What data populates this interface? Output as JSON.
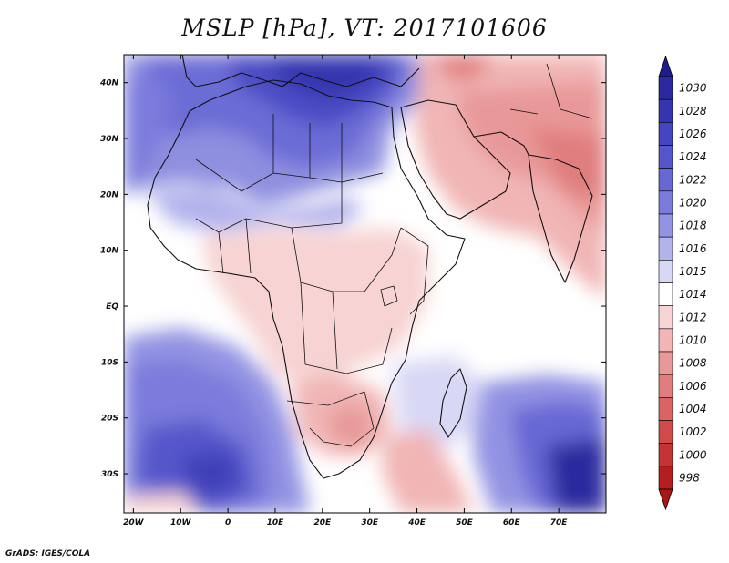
{
  "title": "MSLP [hPa], VT: 2017101606",
  "credit": "GrADS: IGES/COLA",
  "map": {
    "lat_labels": [
      "40N",
      "30N",
      "20N",
      "10N",
      "EQ",
      "10S",
      "20S",
      "30S"
    ],
    "lat_values": [
      40,
      30,
      20,
      10,
      0,
      -10,
      -20,
      -30
    ],
    "lon_labels": [
      "20W",
      "10W",
      "0",
      "10E",
      "20E",
      "30E",
      "40E",
      "50E",
      "60E",
      "70E"
    ],
    "lon_values": [
      -20,
      -10,
      0,
      10,
      20,
      30,
      40,
      50,
      60,
      70
    ],
    "lon_range": [
      -22,
      80
    ],
    "lat_range": [
      -37,
      45
    ]
  },
  "colorbar": {
    "labels": [
      "1030",
      "1028",
      "1026",
      "1024",
      "1022",
      "1020",
      "1018",
      "1016",
      "1015",
      "1014",
      "1012",
      "1010",
      "1008",
      "1006",
      "1004",
      "1002",
      "1000",
      "998"
    ],
    "colors": [
      "#2a2a9e",
      "#3535b0",
      "#4545bf",
      "#5656cb",
      "#6868d4",
      "#7b7bdc",
      "#9393e3",
      "#b3b3ec",
      "#d8d8f6",
      "#ffffff",
      "#f7d3d3",
      "#f1b5b5",
      "#e89898",
      "#e07d7d",
      "#d86464",
      "#cf4a4a",
      "#c43434",
      "#b51e1e"
    ],
    "top_arrow_color": "#1c1c8c",
    "bottom_arrow_color": "#a81616"
  }
}
